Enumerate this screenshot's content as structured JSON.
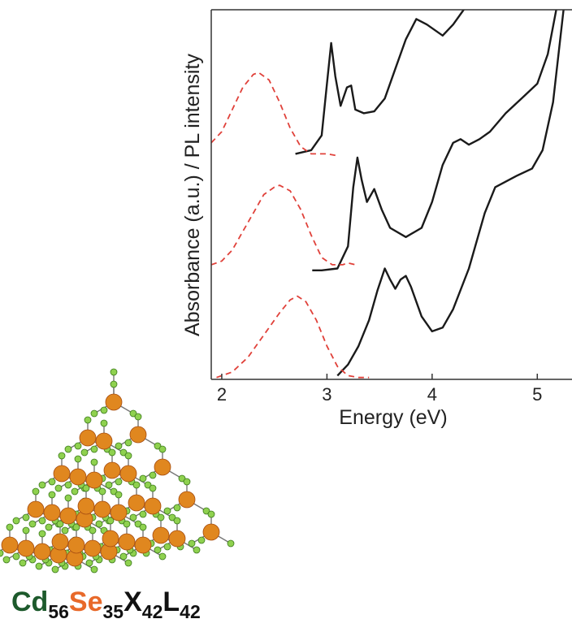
{
  "chart_data": {
    "type": "line",
    "xlabel": "Energy (eV)",
    "ylabel": "Absorbance (a.u.) / PL intensity",
    "xlim": [
      1.9,
      5.33
    ],
    "xticks": [
      2,
      3,
      4,
      5
    ],
    "ylim": [
      0,
      10
    ],
    "series": [
      {
        "color": "#1a1a1a",
        "style": "solid",
        "x": [
          2.7,
          2.85,
          2.95,
          3.0,
          3.04,
          3.08,
          3.13,
          3.19,
          3.23,
          3.27,
          3.35,
          3.45,
          3.55,
          3.65,
          3.75,
          3.85,
          3.95,
          4.1,
          4.2,
          4.3
        ],
        "values": [
          6.1,
          6.2,
          6.6,
          8.0,
          9.1,
          8.2,
          7.4,
          7.9,
          7.95,
          7.3,
          7.2,
          7.25,
          7.6,
          8.4,
          9.2,
          9.75,
          9.6,
          9.3,
          9.6,
          10.0
        ]
      },
      {
        "color": "#1a1a1a",
        "style": "solid",
        "x": [
          2.86,
          2.95,
          3.1,
          3.2,
          3.25,
          3.29,
          3.33,
          3.38,
          3.45,
          3.52,
          3.6,
          3.75,
          3.9,
          4.0,
          4.1,
          4.2,
          4.27,
          4.35,
          4.45,
          4.55,
          4.7,
          4.85,
          5.0,
          5.1,
          5.18
        ],
        "values": [
          2.95,
          2.95,
          3.0,
          3.6,
          5.2,
          6.0,
          5.4,
          4.8,
          5.15,
          4.6,
          4.1,
          3.85,
          4.1,
          4.8,
          5.8,
          6.4,
          6.5,
          6.35,
          6.5,
          6.7,
          7.2,
          7.6,
          8.0,
          8.8,
          10.0
        ]
      },
      {
        "color": "#1a1a1a",
        "style": "solid",
        "x": [
          3.1,
          3.2,
          3.3,
          3.4,
          3.48,
          3.55,
          3.6,
          3.65,
          3.7,
          3.75,
          3.8,
          3.9,
          4.0,
          4.1,
          4.2,
          4.35,
          4.5,
          4.6,
          4.8,
          4.95,
          5.05,
          5.15,
          5.25
        ],
        "values": [
          0.1,
          0.4,
          0.9,
          1.6,
          2.4,
          3.0,
          2.7,
          2.45,
          2.7,
          2.8,
          2.5,
          1.7,
          1.3,
          1.4,
          1.9,
          3.0,
          4.5,
          5.2,
          5.5,
          5.7,
          6.2,
          7.5,
          10.0
        ]
      },
      {
        "color": "#e0413a",
        "style": "dashed",
        "x": [
          1.9,
          2.0,
          2.1,
          2.2,
          2.3,
          2.35,
          2.45,
          2.55,
          2.65,
          2.75,
          2.85,
          3.0,
          3.1
        ],
        "values": [
          6.4,
          6.7,
          7.3,
          7.9,
          8.25,
          8.3,
          8.1,
          7.5,
          6.8,
          6.3,
          6.1,
          6.1,
          6.05
        ]
      },
      {
        "color": "#e0413a",
        "style": "dashed",
        "x": [
          1.9,
          2.0,
          2.1,
          2.2,
          2.3,
          2.4,
          2.5,
          2.55,
          2.65,
          2.75,
          2.85,
          2.95,
          3.05,
          3.15,
          3.2,
          3.27
        ],
        "values": [
          3.1,
          3.2,
          3.5,
          4.0,
          4.5,
          5.0,
          5.2,
          5.25,
          5.1,
          4.6,
          3.9,
          3.3,
          3.1,
          3.1,
          3.15,
          3.1
        ]
      },
      {
        "color": "#e0413a",
        "style": "dashed",
        "x": [
          1.95,
          2.1,
          2.25,
          2.4,
          2.55,
          2.65,
          2.72,
          2.8,
          2.9,
          3.0,
          3.1,
          3.2,
          3.3,
          3.4
        ],
        "values": [
          0.05,
          0.2,
          0.6,
          1.2,
          1.8,
          2.15,
          2.25,
          2.1,
          1.6,
          0.9,
          0.35,
          0.1,
          0.05,
          0.05
        ]
      }
    ]
  },
  "molecule": {
    "formula": [
      {
        "symbol": "Cd",
        "count": 56
      },
      {
        "symbol": "Se",
        "count": 35
      },
      {
        "symbol": "X",
        "count": 42
      },
      {
        "symbol": "L",
        "count": 42
      }
    ]
  }
}
